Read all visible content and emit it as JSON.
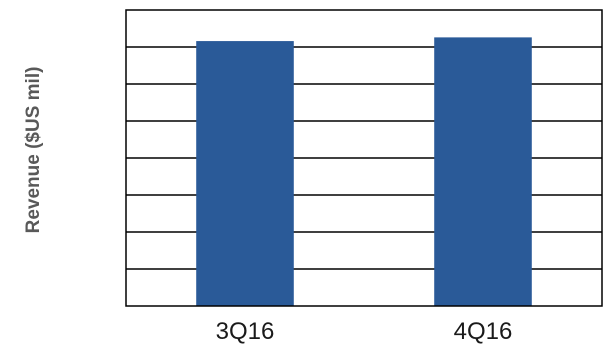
{
  "chart_data": {
    "type": "bar",
    "title": "",
    "xlabel": "",
    "ylabel": "Revenue ($US mil)",
    "categories": [
      "3Q16",
      "4Q16"
    ],
    "series": [
      {
        "values": [
          7.16,
          7.26
        ]
      }
    ],
    "ylim": [
      0,
      8
    ],
    "ytick_count": 8,
    "grid": true,
    "y_tick_labels_visible": false,
    "legend": "none",
    "colors": {
      "bar": "#2a5a98",
      "grid": "#000000",
      "frame": "#000000"
    }
  }
}
